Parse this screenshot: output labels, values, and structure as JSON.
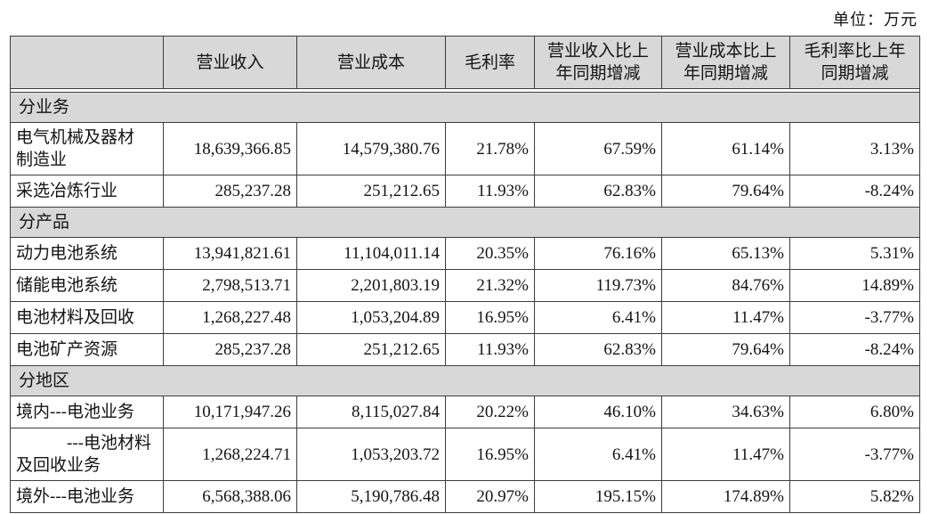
{
  "unit_label": "单位：万元",
  "colors": {
    "section_bg": "#d8d8d8",
    "border": "#3d3d3d",
    "text": "#141414",
    "page_bg": "#ffffff"
  },
  "table": {
    "columns": [
      "",
      "营业收入",
      "营业成本",
      "毛利率",
      "营业收入比上\n年同期增减",
      "营业成本比上\n年同期增减",
      "毛利率比上年\n同期增减"
    ],
    "rows": [
      {
        "type": "section",
        "label": "分业务"
      },
      {
        "type": "data",
        "label": "电气机械及器材\n制造业",
        "values": [
          "18,639,366.85",
          "14,579,380.76",
          "21.78%",
          "67.59%",
          "61.14%",
          "3.13%"
        ]
      },
      {
        "type": "data",
        "label": "采选冶炼行业",
        "values": [
          "285,237.28",
          "251,212.65",
          "11.93%",
          "62.83%",
          "79.64%",
          "-8.24%"
        ]
      },
      {
        "type": "section",
        "label": "分产品"
      },
      {
        "type": "data",
        "label": "动力电池系统",
        "values": [
          "13,941,821.61",
          "11,104,011.14",
          "20.35%",
          "76.16%",
          "65.13%",
          "5.31%"
        ]
      },
      {
        "type": "data",
        "label": "储能电池系统",
        "values": [
          "2,798,513.71",
          "2,201,803.19",
          "21.32%",
          "119.73%",
          "84.76%",
          "14.89%"
        ]
      },
      {
        "type": "data",
        "label": "电池材料及回收",
        "values": [
          "1,268,227.48",
          "1,053,204.89",
          "16.95%",
          "6.41%",
          "11.47%",
          "-3.77%"
        ]
      },
      {
        "type": "data",
        "label": "电池矿产资源",
        "values": [
          "285,237.28",
          "251,212.65",
          "11.93%",
          "62.83%",
          "79.64%",
          "-8.24%"
        ]
      },
      {
        "type": "section",
        "label": "分地区"
      },
      {
        "type": "data",
        "label": "境内---电池业务",
        "values": [
          "10,171,947.26",
          "8,115,027.84",
          "20.22%",
          "46.10%",
          "34.63%",
          "6.80%"
        ]
      },
      {
        "type": "data",
        "label": "　　　---电池材料\n及回收业务",
        "values": [
          "1,268,224.71",
          "1,053,203.72",
          "16.95%",
          "6.41%",
          "11.47%",
          "-3.77%"
        ]
      },
      {
        "type": "data",
        "label": "境外---电池业务",
        "values": [
          "6,568,388.06",
          "5,190,786.48",
          "20.97%",
          "195.15%",
          "174.89%",
          "5.82%"
        ]
      }
    ]
  }
}
